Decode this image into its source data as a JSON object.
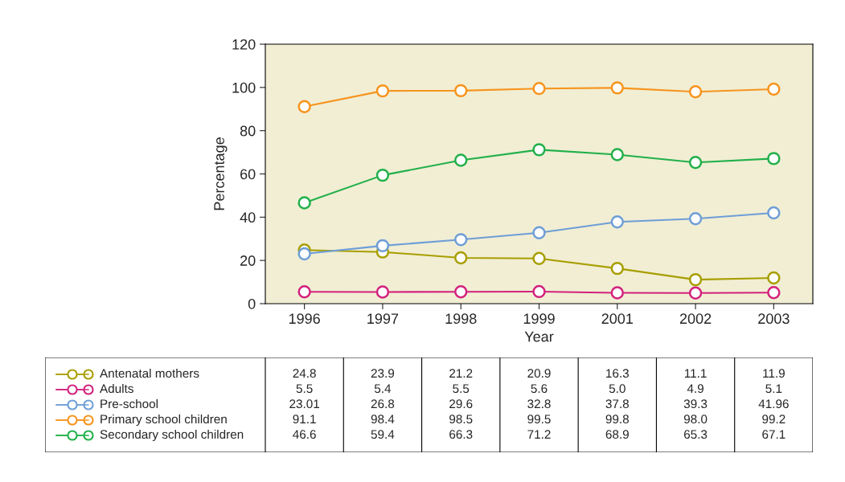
{
  "chart_data": {
    "type": "line",
    "xlabel": "Year",
    "ylabel": "Percentage",
    "categories": [
      "1996",
      "1997",
      "1998",
      "1999",
      "2001",
      "2002",
      "2003"
    ],
    "ylim": [
      0,
      120
    ],
    "yticks": [
      0,
      20,
      40,
      60,
      80,
      100,
      120
    ],
    "marker": "circle",
    "legend": "bottom",
    "grid": false,
    "series": [
      {
        "name": "Antenatal mothers",
        "color": "#a89e00",
        "values": [
          24.8,
          23.9,
          21.2,
          20.9,
          16.3,
          11.1,
          11.9
        ],
        "value_labels": [
          "24.8",
          "23.9",
          "21.2",
          "20.9",
          "16.3",
          "11.1",
          "11.9"
        ]
      },
      {
        "name": "Adults",
        "color": "#d3217d",
        "values": [
          5.5,
          5.4,
          5.5,
          5.6,
          5.0,
          4.9,
          5.1
        ],
        "value_labels": [
          "5.5",
          "5.4",
          "5.5",
          "5.6",
          "5.0",
          "4.9",
          "5.1"
        ]
      },
      {
        "name": "Pre-school",
        "color": "#6e9ed6",
        "values": [
          23.01,
          26.8,
          29.6,
          32.8,
          37.8,
          39.3,
          41.96
        ],
        "value_labels": [
          "23.01",
          "26.8",
          "29.6",
          "32.8",
          "37.8",
          "39.3",
          "41.96"
        ]
      },
      {
        "name": "Primary school children",
        "color": "#f7941d",
        "values": [
          91.1,
          98.4,
          98.5,
          99.5,
          99.8,
          98.0,
          99.2
        ],
        "value_labels": [
          "91.1",
          "98.4",
          "98.5",
          "99.5",
          "99.8",
          "98.0",
          "99.2"
        ]
      },
      {
        "name": "Secondary school children",
        "color": "#22b04a",
        "values": [
          46.6,
          59.4,
          66.3,
          71.2,
          68.9,
          65.3,
          67.1
        ],
        "value_labels": [
          "46.6",
          "59.4",
          "66.3",
          "71.2",
          "68.9",
          "65.3",
          "67.1"
        ]
      }
    ]
  }
}
